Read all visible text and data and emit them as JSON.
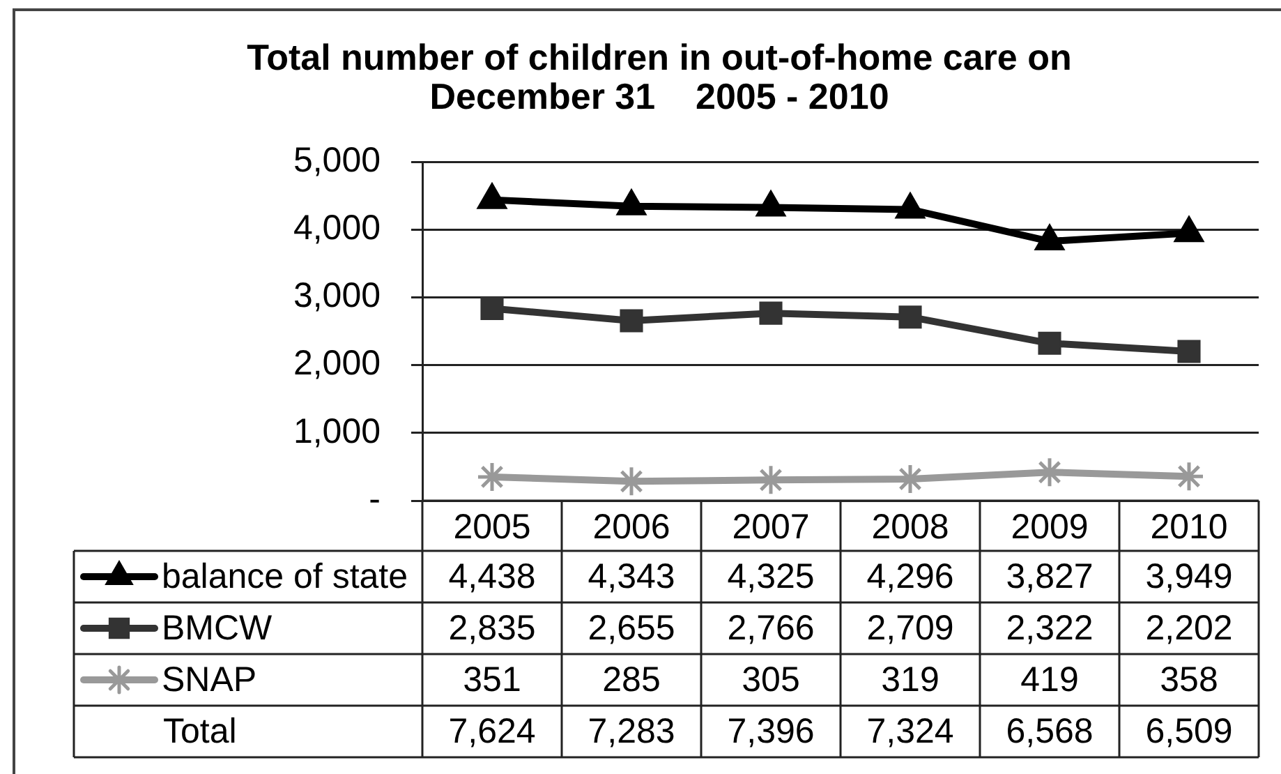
{
  "chart_data": {
    "type": "line",
    "title": "Total number of children in out-of-home care on\nDecember 31    2005 - 2010",
    "categories": [
      "2005",
      "2006",
      "2007",
      "2008",
      "2009",
      "2010"
    ],
    "series": [
      {
        "name": "balance of state",
        "color": "#000000",
        "marker": "triangle",
        "values": [
          4438,
          4343,
          4325,
          4296,
          3827,
          3949
        ],
        "value_labels": [
          "4,438",
          "4,343",
          "4,325",
          "4,296",
          "3,827",
          "3,949"
        ]
      },
      {
        "name": "BMCW",
        "color": "#333333",
        "marker": "square",
        "values": [
          2835,
          2655,
          2766,
          2709,
          2322,
          2202
        ],
        "value_labels": [
          "2,835",
          "2,655",
          "2,766",
          "2,709",
          "2,322",
          "2,202"
        ]
      },
      {
        "name": "SNAP",
        "color": "#999999",
        "marker": "cross",
        "values": [
          351,
          285,
          305,
          319,
          419,
          358
        ],
        "value_labels": [
          "351",
          "285",
          "305",
          "319",
          "419",
          "358"
        ]
      }
    ],
    "ylim": [
      0,
      5000
    ],
    "yticks": [
      {
        "value": 0,
        "label": "-"
      },
      {
        "value": 1000,
        "label": "1,000"
      },
      {
        "value": 2000,
        "label": "2,000"
      },
      {
        "value": 3000,
        "label": "3,000"
      },
      {
        "value": 4000,
        "label": "4,000"
      },
      {
        "value": 5000,
        "label": "5,000"
      }
    ],
    "grid": "y",
    "legend": "bottom left",
    "totals": [
      "7,624",
      "7,283",
      "7,396",
      "7,324",
      "6,568",
      "6,509"
    ],
    "annotations": [
      "Total"
    ]
  }
}
